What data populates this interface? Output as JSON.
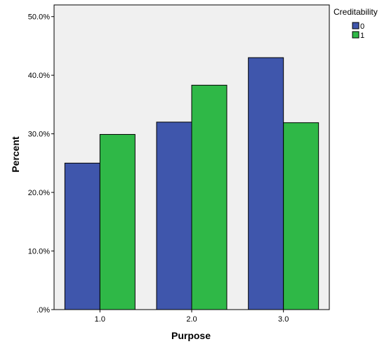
{
  "chart_data": {
    "type": "bar",
    "categories": [
      "1.0",
      "2.0",
      "3.0"
    ],
    "series": [
      {
        "name": "0",
        "color": "#3f56ac",
        "values": [
          25.0,
          32.0,
          43.0
        ]
      },
      {
        "name": "1",
        "color": "#2fb847",
        "values": [
          29.9,
          38.3,
          31.9
        ]
      }
    ],
    "xlabel": "Purpose",
    "ylabel": "Percent",
    "ylim": [
      0,
      52
    ],
    "yticks": [
      0,
      10,
      20,
      30,
      40,
      50
    ],
    "ytick_labels": [
      ".0%",
      "10.0%",
      "20.0%",
      "30.0%",
      "40.0%",
      "50.0%"
    ],
    "legend_title": "Creditability",
    "legend_position": "top-right",
    "grid": false,
    "plot_background": "#f0f0f0"
  }
}
